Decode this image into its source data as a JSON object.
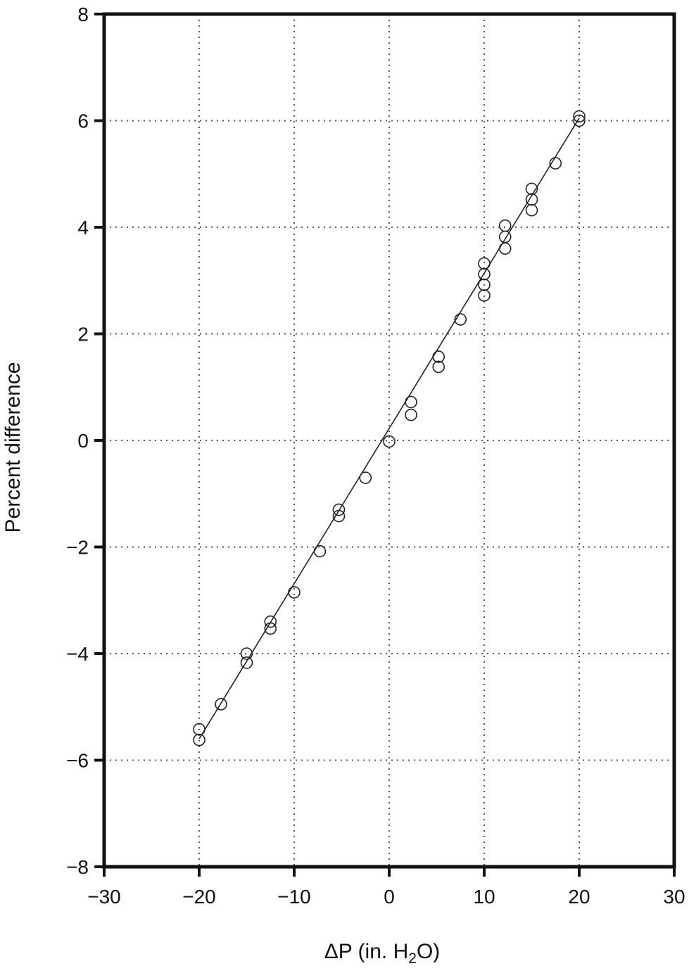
{
  "chart_data": {
    "type": "scatter",
    "title": "",
    "xlabel_prefix": "ΔP (in. H",
    "xlabel_sub": "2",
    "xlabel_suffix": "O)",
    "ylabel": "Percent difference",
    "xlim": [
      -30,
      30
    ],
    "ylim": [
      -8,
      8
    ],
    "xticks": [
      -30,
      -20,
      -10,
      0,
      10,
      20,
      30
    ],
    "yticks": [
      -8,
      -6,
      -4,
      -2,
      0,
      2,
      4,
      6,
      8
    ],
    "xtick_labels": [
      "−30",
      "−20",
      "−10",
      "0",
      "10",
      "20",
      "30"
    ],
    "ytick_labels": [
      "−8",
      "−6",
      "−4",
      "−2",
      "0",
      "2",
      "4",
      "6",
      "8"
    ],
    "grid": true,
    "grid_style": "dotted",
    "legend": "none",
    "marker": "open-circle",
    "series": [
      {
        "points": [
          {
            "x": -20,
            "y": -5.42
          },
          {
            "x": -20,
            "y": -5.62
          },
          {
            "x": -17.7,
            "y": -4.95
          },
          {
            "x": -15,
            "y": -4.0
          },
          {
            "x": -15,
            "y": -4.17
          },
          {
            "x": -12.5,
            "y": -3.4
          },
          {
            "x": -12.5,
            "y": -3.53
          },
          {
            "x": -10,
            "y": -2.85
          },
          {
            "x": -7.3,
            "y": -2.08
          },
          {
            "x": -5.3,
            "y": -1.3
          },
          {
            "x": -5.3,
            "y": -1.42
          },
          {
            "x": -2.5,
            "y": -0.7
          },
          {
            "x": 0,
            "y": -0.02
          },
          {
            "x": 2.3,
            "y": 0.72
          },
          {
            "x": 2.3,
            "y": 0.48
          },
          {
            "x": 5.2,
            "y": 1.57
          },
          {
            "x": 5.2,
            "y": 1.38
          },
          {
            "x": 7.5,
            "y": 2.27
          },
          {
            "x": 10,
            "y": 3.32
          },
          {
            "x": 10,
            "y": 3.12
          },
          {
            "x": 10,
            "y": 2.92
          },
          {
            "x": 10,
            "y": 2.72
          },
          {
            "x": 12.2,
            "y": 4.03
          },
          {
            "x": 12.2,
            "y": 3.82
          },
          {
            "x": 12.2,
            "y": 3.6
          },
          {
            "x": 15,
            "y": 4.72
          },
          {
            "x": 15,
            "y": 4.52
          },
          {
            "x": 15,
            "y": 4.32
          },
          {
            "x": 17.5,
            "y": 5.2
          },
          {
            "x": 20,
            "y": 6.08
          },
          {
            "x": 20,
            "y": 6.0
          }
        ]
      }
    ],
    "fit_line": {
      "x": [
        -20,
        20
      ],
      "y": [
        -5.6,
        6.05
      ]
    },
    "colors": {
      "marker": "#222222",
      "line": "#222222",
      "axis": "#111111",
      "grid": "#555555"
    }
  }
}
